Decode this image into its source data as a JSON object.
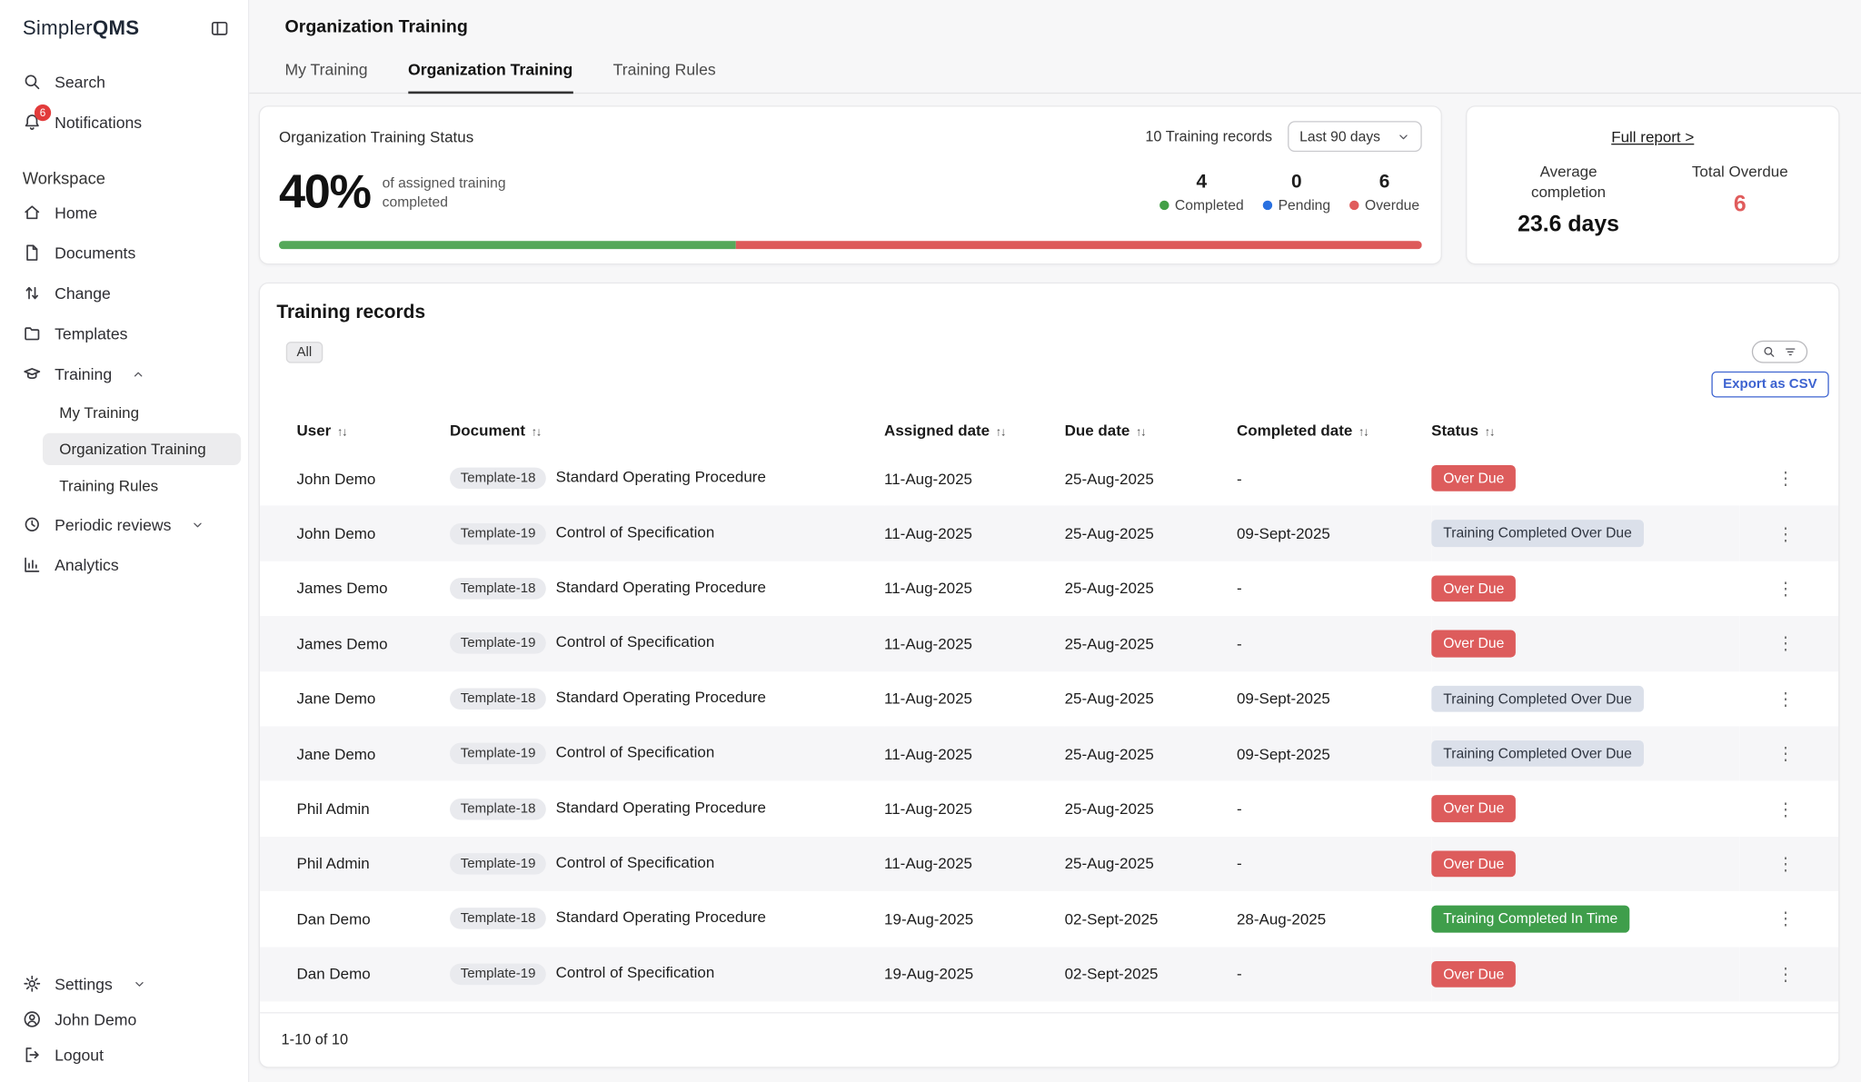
{
  "brand": {
    "name_regular": "Simpler",
    "name_bold": "QMS"
  },
  "sidebar": {
    "search_label": "Search",
    "notifications_label": "Notifications",
    "notifications_badge": "6",
    "workspace_label": "Workspace",
    "items": [
      {
        "label": "Home"
      },
      {
        "label": "Documents"
      },
      {
        "label": "Change"
      },
      {
        "label": "Templates"
      },
      {
        "label": "Training"
      },
      {
        "label": "Periodic reviews"
      },
      {
        "label": "Analytics"
      }
    ],
    "training_children": [
      {
        "label": "My Training",
        "selected": false
      },
      {
        "label": "Organization Training",
        "selected": true
      },
      {
        "label": "Training Rules",
        "selected": false
      }
    ],
    "settings_label": "Settings",
    "user_label": "John Demo",
    "logout_label": "Logout"
  },
  "header": {
    "title": "Organization Training",
    "tabs": [
      {
        "label": "My Training",
        "active": false
      },
      {
        "label": "Organization Training",
        "active": true
      },
      {
        "label": "Training Rules",
        "active": false
      }
    ]
  },
  "status_card": {
    "title": "Organization Training Status",
    "records_count": "10 Training records",
    "range_selected": "Last 90 days",
    "percent": "40%",
    "caption": "of assigned training completed",
    "legend": [
      {
        "value": "4",
        "label": "Completed",
        "color": "#43a047"
      },
      {
        "value": "0",
        "label": "Pending",
        "color": "#2970e0"
      },
      {
        "value": "6",
        "label": "Overdue",
        "color": "#e05c5c"
      }
    ],
    "progress": {
      "completed_pct": 40,
      "overdue_pct": 60,
      "completed_color": "#55a85a",
      "overdue_color": "#dd5a5a"
    }
  },
  "summary_card": {
    "full_report_link": "Full report >",
    "avg_label": "Average completion",
    "avg_value": "23.6 days",
    "overdue_label": "Total Overdue",
    "overdue_value": "6",
    "overdue_color": "#e05c5c"
  },
  "records": {
    "title": "Training records",
    "filter_all_label": "All",
    "export_button_label": "Export as CSV",
    "columns": [
      "User",
      "Document",
      "Assigned date",
      "Due date",
      "Completed date",
      "Status"
    ],
    "rows": [
      {
        "user": "John Demo",
        "template": "Template-18",
        "document": "Standard Operating Procedure",
        "assigned": "11-Aug-2025",
        "due": "25-Aug-2025",
        "completed": "-",
        "status": "Over Due",
        "status_type": "overdue"
      },
      {
        "user": "John Demo",
        "template": "Template-19",
        "document": "Control of Specification",
        "assigned": "11-Aug-2025",
        "due": "25-Aug-2025",
        "completed": "09-Sept-2025",
        "status": "Training Completed Over Due",
        "status_type": "completed_overdue"
      },
      {
        "user": "James Demo",
        "template": "Template-18",
        "document": "Standard Operating Procedure",
        "assigned": "11-Aug-2025",
        "due": "25-Aug-2025",
        "completed": "-",
        "status": "Over Due",
        "status_type": "overdue"
      },
      {
        "user": "James Demo",
        "template": "Template-19",
        "document": "Control of Specification",
        "assigned": "11-Aug-2025",
        "due": "25-Aug-2025",
        "completed": "-",
        "status": "Over Due",
        "status_type": "overdue"
      },
      {
        "user": "Jane Demo",
        "template": "Template-18",
        "document": "Standard Operating Procedure",
        "assigned": "11-Aug-2025",
        "due": "25-Aug-2025",
        "completed": "09-Sept-2025",
        "status": "Training Completed Over Due",
        "status_type": "completed_overdue"
      },
      {
        "user": "Jane Demo",
        "template": "Template-19",
        "document": "Control of Specification",
        "assigned": "11-Aug-2025",
        "due": "25-Aug-2025",
        "completed": "09-Sept-2025",
        "status": "Training Completed Over Due",
        "status_type": "completed_overdue"
      },
      {
        "user": "Phil Admin",
        "template": "Template-18",
        "document": "Standard Operating Procedure",
        "assigned": "11-Aug-2025",
        "due": "25-Aug-2025",
        "completed": "-",
        "status": "Over Due",
        "status_type": "overdue"
      },
      {
        "user": "Phil Admin",
        "template": "Template-19",
        "document": "Control of Specification",
        "assigned": "11-Aug-2025",
        "due": "25-Aug-2025",
        "completed": "-",
        "status": "Over Due",
        "status_type": "overdue"
      },
      {
        "user": "Dan Demo",
        "template": "Template-18",
        "document": "Standard Operating Procedure",
        "assigned": "19-Aug-2025",
        "due": "02-Sept-2025",
        "completed": "28-Aug-2025",
        "status": "Training Completed In Time",
        "status_type": "completed_in_time"
      },
      {
        "user": "Dan Demo",
        "template": "Template-19",
        "document": "Control of Specification",
        "assigned": "19-Aug-2025",
        "due": "02-Sept-2025",
        "completed": "-",
        "status": "Over Due",
        "status_type": "overdue"
      }
    ],
    "pagination": "1-10 of 10"
  }
}
